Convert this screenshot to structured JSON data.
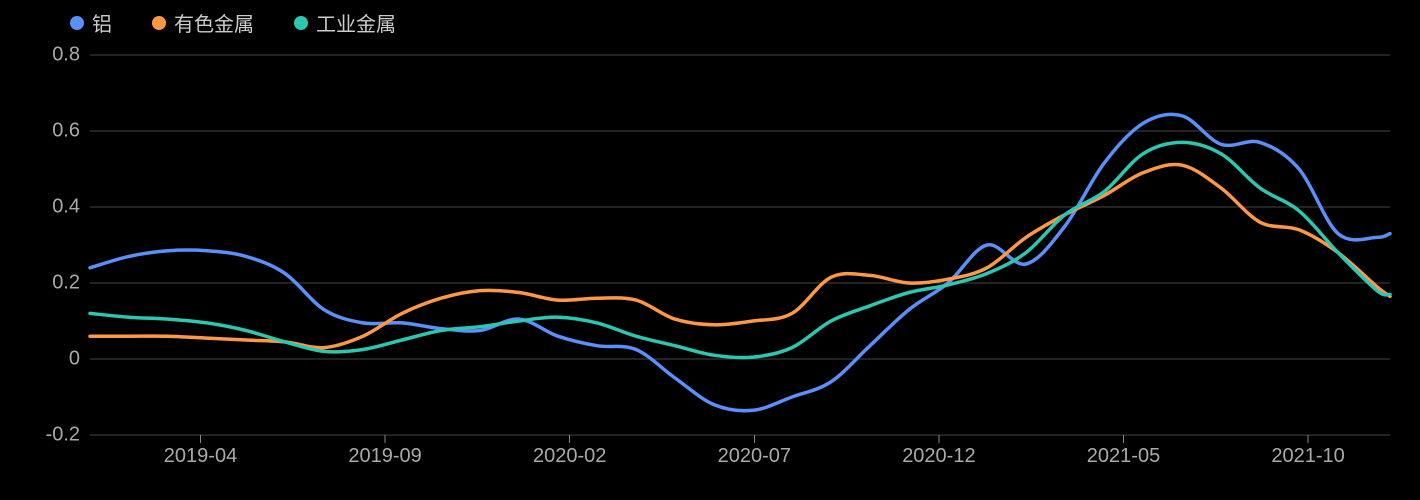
{
  "chart": {
    "type": "line",
    "background_color": "#000000",
    "grid_color": "#444444",
    "tick_color": "#888888",
    "text_color": "#aaaaaa",
    "legend_text_color": "#cccccc",
    "label_fontsize": 20,
    "line_width": 3.5,
    "legend_items": [
      {
        "label": "铝",
        "color": "#5b8ff9"
      },
      {
        "label": "有色金属",
        "color": "#ff9845"
      },
      {
        "label": "工业金属",
        "color": "#2bc7b0"
      }
    ],
    "y_axis": {
      "min": -0.2,
      "max": 0.8,
      "ticks": [
        -0.2,
        0,
        0.2,
        0.4,
        0.6,
        0.8
      ]
    },
    "x_axis": {
      "tick_labels": [
        "2019-04",
        "2019-09",
        "2020-02",
        "2020-07",
        "2020-12",
        "2021-05",
        "2021-10"
      ],
      "tick_positions": [
        0.085,
        0.227,
        0.369,
        0.511,
        0.653,
        0.795,
        0.937
      ]
    },
    "series": [
      {
        "name": "铝",
        "color": "#5b8ff9",
        "points": [
          [
            0.0,
            0.24
          ],
          [
            0.03,
            0.27
          ],
          [
            0.06,
            0.285
          ],
          [
            0.09,
            0.285
          ],
          [
            0.12,
            0.27
          ],
          [
            0.15,
            0.225
          ],
          [
            0.18,
            0.13
          ],
          [
            0.21,
            0.095
          ],
          [
            0.24,
            0.095
          ],
          [
            0.27,
            0.08
          ],
          [
            0.3,
            0.075
          ],
          [
            0.33,
            0.105
          ],
          [
            0.36,
            0.06
          ],
          [
            0.39,
            0.035
          ],
          [
            0.42,
            0.025
          ],
          [
            0.45,
            -0.05
          ],
          [
            0.48,
            -0.12
          ],
          [
            0.51,
            -0.135
          ],
          [
            0.54,
            -0.1
          ],
          [
            0.57,
            -0.06
          ],
          [
            0.6,
            0.035
          ],
          [
            0.63,
            0.13
          ],
          [
            0.66,
            0.2
          ],
          [
            0.69,
            0.3
          ],
          [
            0.72,
            0.25
          ],
          [
            0.75,
            0.35
          ],
          [
            0.78,
            0.515
          ],
          [
            0.81,
            0.62
          ],
          [
            0.84,
            0.64
          ],
          [
            0.87,
            0.565
          ],
          [
            0.9,
            0.57
          ],
          [
            0.93,
            0.5
          ],
          [
            0.96,
            0.33
          ],
          [
            0.99,
            0.32
          ],
          [
            1.0,
            0.33
          ]
        ]
      },
      {
        "name": "有色金属",
        "color": "#ff9845",
        "points": [
          [
            0.0,
            0.06
          ],
          [
            0.03,
            0.06
          ],
          [
            0.06,
            0.06
          ],
          [
            0.09,
            0.055
          ],
          [
            0.12,
            0.05
          ],
          [
            0.15,
            0.045
          ],
          [
            0.18,
            0.03
          ],
          [
            0.21,
            0.06
          ],
          [
            0.24,
            0.12
          ],
          [
            0.27,
            0.16
          ],
          [
            0.3,
            0.18
          ],
          [
            0.33,
            0.175
          ],
          [
            0.36,
            0.155
          ],
          [
            0.39,
            0.16
          ],
          [
            0.42,
            0.155
          ],
          [
            0.45,
            0.105
          ],
          [
            0.48,
            0.09
          ],
          [
            0.51,
            0.1
          ],
          [
            0.54,
            0.12
          ],
          [
            0.57,
            0.215
          ],
          [
            0.6,
            0.22
          ],
          [
            0.63,
            0.2
          ],
          [
            0.66,
            0.21
          ],
          [
            0.69,
            0.24
          ],
          [
            0.72,
            0.32
          ],
          [
            0.75,
            0.38
          ],
          [
            0.78,
            0.43
          ],
          [
            0.81,
            0.49
          ],
          [
            0.84,
            0.51
          ],
          [
            0.87,
            0.45
          ],
          [
            0.9,
            0.36
          ],
          [
            0.93,
            0.34
          ],
          [
            0.96,
            0.28
          ],
          [
            0.99,
            0.19
          ],
          [
            1.0,
            0.165
          ]
        ]
      },
      {
        "name": "工业金属",
        "color": "#2bc7b0",
        "points": [
          [
            0.0,
            0.12
          ],
          [
            0.03,
            0.11
          ],
          [
            0.06,
            0.105
          ],
          [
            0.09,
            0.095
          ],
          [
            0.12,
            0.075
          ],
          [
            0.15,
            0.045
          ],
          [
            0.18,
            0.02
          ],
          [
            0.21,
            0.025
          ],
          [
            0.24,
            0.05
          ],
          [
            0.27,
            0.075
          ],
          [
            0.3,
            0.085
          ],
          [
            0.33,
            0.1
          ],
          [
            0.36,
            0.11
          ],
          [
            0.39,
            0.095
          ],
          [
            0.42,
            0.06
          ],
          [
            0.45,
            0.035
          ],
          [
            0.48,
            0.01
          ],
          [
            0.51,
            0.005
          ],
          [
            0.54,
            0.03
          ],
          [
            0.57,
            0.1
          ],
          [
            0.6,
            0.14
          ],
          [
            0.63,
            0.175
          ],
          [
            0.66,
            0.195
          ],
          [
            0.69,
            0.225
          ],
          [
            0.72,
            0.28
          ],
          [
            0.75,
            0.38
          ],
          [
            0.78,
            0.44
          ],
          [
            0.81,
            0.54
          ],
          [
            0.84,
            0.57
          ],
          [
            0.87,
            0.54
          ],
          [
            0.9,
            0.45
          ],
          [
            0.93,
            0.39
          ],
          [
            0.96,
            0.28
          ],
          [
            0.99,
            0.18
          ],
          [
            1.0,
            0.17
          ]
        ]
      }
    ]
  }
}
